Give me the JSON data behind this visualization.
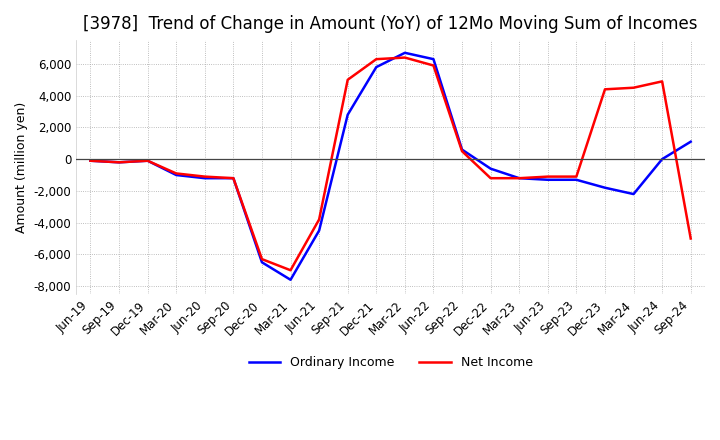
{
  "title": "[3978]  Trend of Change in Amount (YoY) of 12Mo Moving Sum of Incomes",
  "ylabel": "Amount (million yen)",
  "ylim": [
    -8500,
    7500
  ],
  "yticks": [
    -8000,
    -6000,
    -4000,
    -2000,
    0,
    2000,
    4000,
    6000
  ],
  "x_labels": [
    "Jun-19",
    "Sep-19",
    "Dec-19",
    "Mar-20",
    "Jun-20",
    "Sep-20",
    "Dec-20",
    "Mar-21",
    "Jun-21",
    "Sep-21",
    "Dec-21",
    "Mar-22",
    "Jun-22",
    "Sep-22",
    "Dec-22",
    "Mar-23",
    "Jun-23",
    "Sep-23",
    "Dec-23",
    "Mar-24",
    "Jun-24",
    "Sep-24"
  ],
  "ordinary_income": [
    -100,
    -200,
    -100,
    -1000,
    -1200,
    -1200,
    -6500,
    -7600,
    -4500,
    2800,
    5800,
    6700,
    6300,
    600,
    -600,
    -1200,
    -1300,
    -1300,
    -1800,
    -2200,
    0,
    1100
  ],
  "net_income": [
    -100,
    -200,
    -100,
    -900,
    -1100,
    -1200,
    -6300,
    -7000,
    -3800,
    5000,
    6300,
    6400,
    5900,
    500,
    -1200,
    -1200,
    -1100,
    -1100,
    4400,
    4500,
    4900,
    -5000
  ],
  "ordinary_color": "#0000ff",
  "net_color": "#ff0000",
  "background_color": "#ffffff",
  "grid_color": "#aaaaaa",
  "title_fontsize": 12,
  "label_fontsize": 9,
  "tick_fontsize": 8.5
}
